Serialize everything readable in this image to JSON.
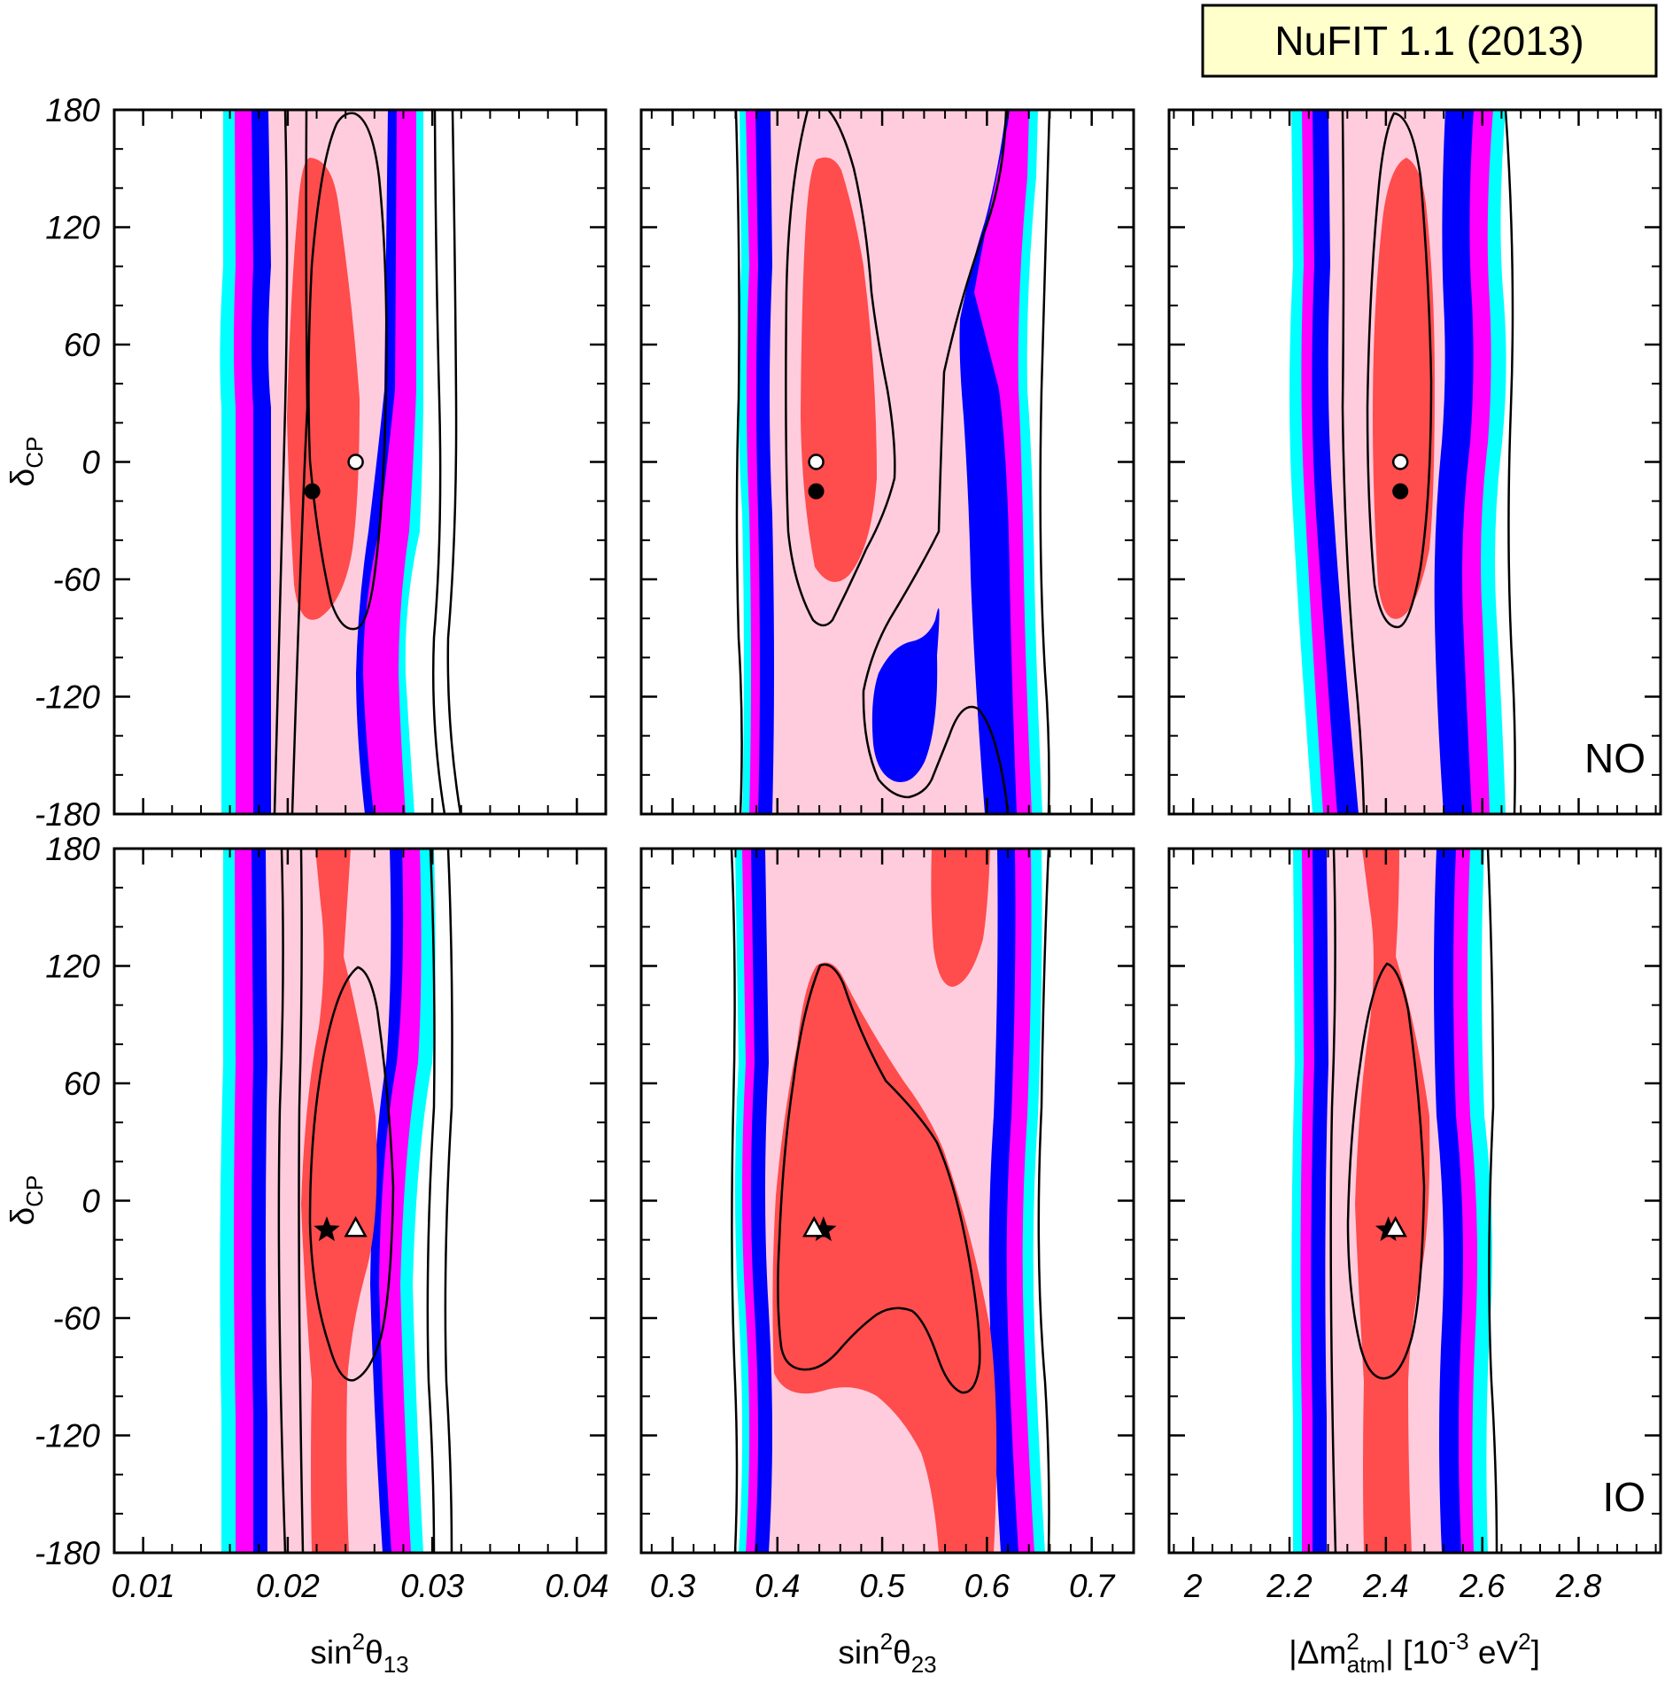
{
  "badge": {
    "label": "NuFIT 1.1 (2013)",
    "bg": "#ffffcc"
  },
  "colors": {
    "red": "#ff4c4c",
    "pink": "#ffccdd",
    "magenta": "#ff00ff",
    "blue": "#0000ff",
    "cyan": "#00ffff",
    "lines": "#000000"
  },
  "row_labels": [
    "NO",
    "IO"
  ],
  "ylabel": {
    "main": "δ",
    "sub": "CP"
  },
  "xlabels": [
    {
      "pre": "sin",
      "sup": "2",
      "mid": "θ",
      "sub": "13"
    },
    {
      "pre": "sin",
      "sup": "2",
      "mid": "θ",
      "sub": "23"
    },
    {
      "pre": "|Δm",
      "sup": "2",
      "sub": "atm",
      "mid2": "| [10",
      "sup2": "-3",
      "mid3": " eV",
      "sup3": "2",
      "end": "]"
    }
  ],
  "chart_data": [
    {
      "type": "contour",
      "row": "NO",
      "xvar": "sin²θ13",
      "yvar": "δCP",
      "xlim": [
        0.008,
        0.042
      ],
      "ylim": [
        -180,
        180
      ],
      "xticks": [
        0.01,
        0.02,
        0.03,
        0.04
      ],
      "xtick_labels": [
        "0.01",
        "0.02",
        "0.03",
        "0.04"
      ],
      "yticks": [
        180,
        120,
        60,
        0,
        -60,
        -120,
        -180
      ],
      "ytick_labels": [
        "180",
        "120",
        "60",
        "0",
        "-60",
        "-120",
        "-180"
      ],
      "best_fit_filled": [
        0.0217,
        -15
      ],
      "best_fit_open": [
        0.0247,
        0
      ]
    },
    {
      "type": "contour",
      "row": "NO",
      "xvar": "sin²θ23",
      "yvar": "δCP",
      "xlim": [
        0.27,
        0.74
      ],
      "ylim": [
        -180,
        180
      ],
      "xticks": [
        0.3,
        0.4,
        0.5,
        0.6,
        0.7
      ],
      "xtick_labels": [
        "0.3",
        "0.4",
        "0.5",
        "0.6",
        "0.7"
      ],
      "yticks": [
        180,
        120,
        60,
        0,
        -60,
        -120,
        -180
      ],
      "ytick_labels": [
        "",
        "",
        "",
        "",
        "",
        "",
        ""
      ],
      "best_fit_filled": [
        0.437,
        -15
      ],
      "best_fit_open": [
        0.437,
        0
      ]
    },
    {
      "type": "contour",
      "row": "NO",
      "xvar": "|Δm²atm|",
      "yvar": "δCP",
      "xlim": [
        1.95,
        2.97
      ],
      "ylim": [
        -180,
        180
      ],
      "xticks": [
        2.0,
        2.2,
        2.4,
        2.6,
        2.8
      ],
      "xtick_labels": [
        "2",
        "2.2",
        "2.4",
        "2.6",
        "2.8"
      ],
      "yticks": [
        180,
        120,
        60,
        0,
        -60,
        -120,
        -180
      ],
      "ytick_labels": [
        "",
        "",
        "",
        "",
        "",
        "",
        ""
      ],
      "best_fit_filled": [
        2.43,
        -15
      ],
      "best_fit_open": [
        2.43,
        0
      ]
    },
    {
      "type": "contour",
      "row": "IO",
      "xvar": "sin²θ13",
      "yvar": "δCP",
      "xlim": [
        0.008,
        0.042
      ],
      "ylim": [
        -180,
        180
      ],
      "xticks": [
        0.01,
        0.02,
        0.03,
        0.04
      ],
      "xtick_labels": [
        "0.01",
        "0.02",
        "0.03",
        "0.04"
      ],
      "yticks": [
        180,
        120,
        60,
        0,
        -60,
        -120,
        -180
      ],
      "ytick_labels": [
        "180",
        "120",
        "60",
        "0",
        "-60",
        "-120",
        "-180"
      ],
      "best_fit_star": [
        0.0227,
        -15
      ],
      "best_fit_triangle": [
        0.0247,
        -14
      ]
    },
    {
      "type": "contour",
      "row": "IO",
      "xvar": "sin²θ23",
      "yvar": "δCP",
      "xlim": [
        0.27,
        0.74
      ],
      "ylim": [
        -180,
        180
      ],
      "xticks": [
        0.3,
        0.4,
        0.5,
        0.6,
        0.7
      ],
      "xtick_labels": [
        "0.3",
        "0.4",
        "0.5",
        "0.6",
        "0.7"
      ],
      "yticks": [
        180,
        120,
        60,
        0,
        -60,
        -120,
        -180
      ],
      "ytick_labels": [
        "",
        "",
        "",
        "",
        "",
        "",
        ""
      ],
      "best_fit_star": [
        0.444,
        -15
      ],
      "best_fit_triangle": [
        0.435,
        -14
      ]
    },
    {
      "type": "contour",
      "row": "IO",
      "xvar": "|Δm²atm|",
      "yvar": "δCP",
      "xlim": [
        1.95,
        2.97
      ],
      "ylim": [
        -180,
        180
      ],
      "xticks": [
        2.0,
        2.2,
        2.4,
        2.6,
        2.8
      ],
      "xtick_labels": [
        "2",
        "2.2",
        "2.4",
        "2.6",
        "2.8"
      ],
      "yticks": [
        180,
        120,
        60,
        0,
        -60,
        -120,
        -180
      ],
      "ytick_labels": [
        "",
        "",
        "",
        "",
        "",
        "",
        ""
      ],
      "best_fit_star": [
        2.405,
        -15
      ],
      "best_fit_triangle": [
        2.42,
        -14
      ]
    }
  ]
}
